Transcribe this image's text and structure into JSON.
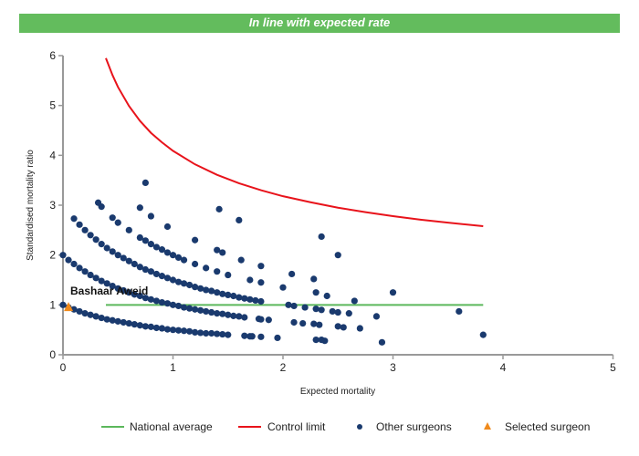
{
  "banner": {
    "text": "In line with expected rate",
    "color": "#63bc5d"
  },
  "chart_data": {
    "type": "scatter",
    "title": "",
    "xlabel": "Expected mortality",
    "ylabel": "Standardised mortality ratio",
    "xlim": [
      0,
      5
    ],
    "ylim": [
      0,
      6
    ],
    "xticks": [
      "0",
      "1",
      "2",
      "3",
      "4",
      "5"
    ],
    "yticks": [
      "0",
      "1",
      "2",
      "3",
      "4",
      "5",
      "6"
    ],
    "grid": false,
    "legend_position": "bottom",
    "legend": [
      "National average",
      "Control limit",
      "Other surgeons",
      "Selected surgeon"
    ],
    "national_average": {
      "name": "National average",
      "color": "#5cb85c",
      "y": 1,
      "x_range": [
        0.39,
        3.82
      ]
    },
    "control_limit": {
      "name": "Control limit",
      "color": "#e8131b",
      "points": [
        [
          0.39,
          5.95
        ],
        [
          0.45,
          5.61
        ],
        [
          0.5,
          5.37
        ],
        [
          0.6,
          4.99
        ],
        [
          0.7,
          4.69
        ],
        [
          0.8,
          4.45
        ],
        [
          0.9,
          4.26
        ],
        [
          1.0,
          4.09
        ],
        [
          1.2,
          3.82
        ],
        [
          1.4,
          3.61
        ],
        [
          1.6,
          3.44
        ],
        [
          1.8,
          3.3
        ],
        [
          2.0,
          3.18
        ],
        [
          2.25,
          3.06
        ],
        [
          2.5,
          2.95
        ],
        [
          2.75,
          2.86
        ],
        [
          3.0,
          2.78
        ],
        [
          3.25,
          2.71
        ],
        [
          3.5,
          2.65
        ],
        [
          3.82,
          2.58
        ]
      ]
    },
    "other_surgeons": {
      "name": "Other surgeons",
      "color": "#1a3a6e",
      "points": [
        [
          0,
          1.0
        ],
        [
          0.05,
          0.95
        ],
        [
          0.1,
          0.91
        ],
        [
          0.15,
          0.87
        ],
        [
          0.2,
          0.83
        ],
        [
          0.25,
          0.8
        ],
        [
          0.3,
          0.77
        ],
        [
          0.35,
          0.74
        ],
        [
          0.4,
          0.71
        ],
        [
          0.45,
          0.69
        ],
        [
          0.5,
          0.67
        ],
        [
          0.55,
          0.65
        ],
        [
          0.6,
          0.63
        ],
        [
          0.65,
          0.61
        ],
        [
          0.7,
          0.59
        ],
        [
          0.75,
          0.57
        ],
        [
          0.8,
          0.56
        ],
        [
          0.85,
          0.54
        ],
        [
          0.9,
          0.53
        ],
        [
          0.95,
          0.51
        ],
        [
          1.0,
          0.5
        ],
        [
          1.05,
          0.49
        ],
        [
          1.1,
          0.48
        ],
        [
          1.15,
          0.47
        ],
        [
          1.2,
          0.45
        ],
        [
          1.25,
          0.44
        ],
        [
          1.3,
          0.43
        ],
        [
          1.35,
          0.43
        ],
        [
          1.4,
          0.42
        ],
        [
          1.45,
          0.41
        ],
        [
          1.5,
          0.4
        ],
        [
          1.65,
          0.38
        ],
        [
          1.7,
          0.37
        ],
        [
          1.72,
          0.37
        ],
        [
          1.8,
          0.36
        ],
        [
          1.95,
          0.34
        ],
        [
          0,
          2.0
        ],
        [
          0.05,
          1.9
        ],
        [
          0.1,
          1.82
        ],
        [
          0.15,
          1.74
        ],
        [
          0.2,
          1.67
        ],
        [
          0.25,
          1.6
        ],
        [
          0.3,
          1.54
        ],
        [
          0.35,
          1.48
        ],
        [
          0.4,
          1.43
        ],
        [
          0.45,
          1.38
        ],
        [
          0.5,
          1.33
        ],
        [
          0.55,
          1.29
        ],
        [
          0.6,
          1.25
        ],
        [
          0.65,
          1.21
        ],
        [
          0.7,
          1.18
        ],
        [
          0.75,
          1.14
        ],
        [
          0.8,
          1.11
        ],
        [
          0.85,
          1.08
        ],
        [
          0.9,
          1.05
        ],
        [
          0.95,
          1.03
        ],
        [
          1.0,
          1.0
        ],
        [
          1.05,
          0.98
        ],
        [
          1.1,
          0.95
        ],
        [
          1.15,
          0.93
        ],
        [
          1.2,
          0.91
        ],
        [
          1.25,
          0.89
        ],
        [
          1.3,
          0.87
        ],
        [
          1.35,
          0.85
        ],
        [
          1.4,
          0.83
        ],
        [
          1.45,
          0.82
        ],
        [
          1.5,
          0.8
        ],
        [
          1.55,
          0.78
        ],
        [
          1.6,
          0.77
        ],
        [
          1.65,
          0.75
        ],
        [
          1.78,
          0.72
        ],
        [
          1.8,
          0.71
        ],
        [
          1.87,
          0.7
        ],
        [
          0.1,
          2.73
        ],
        [
          0.15,
          2.61
        ],
        [
          0.2,
          2.5
        ],
        [
          0.25,
          2.4
        ],
        [
          0.3,
          2.31
        ],
        [
          0.35,
          2.22
        ],
        [
          0.4,
          2.14
        ],
        [
          0.45,
          2.07
        ],
        [
          0.5,
          2.0
        ],
        [
          0.55,
          1.94
        ],
        [
          0.6,
          1.88
        ],
        [
          0.65,
          1.82
        ],
        [
          0.7,
          1.76
        ],
        [
          0.75,
          1.71
        ],
        [
          0.8,
          1.67
        ],
        [
          0.85,
          1.62
        ],
        [
          0.9,
          1.58
        ],
        [
          0.95,
          1.54
        ],
        [
          1.0,
          1.5
        ],
        [
          1.05,
          1.46
        ],
        [
          1.1,
          1.43
        ],
        [
          1.15,
          1.4
        ],
        [
          1.2,
          1.36
        ],
        [
          1.25,
          1.33
        ],
        [
          1.3,
          1.3
        ],
        [
          1.35,
          1.28
        ],
        [
          1.4,
          1.25
        ],
        [
          1.45,
          1.22
        ],
        [
          1.5,
          1.2
        ],
        [
          1.55,
          1.18
        ],
        [
          1.6,
          1.15
        ],
        [
          1.65,
          1.13
        ],
        [
          1.7,
          1.11
        ],
        [
          1.75,
          1.09
        ],
        [
          1.8,
          1.07
        ],
        [
          0.32,
          3.05
        ],
        [
          0.35,
          2.97
        ],
        [
          0.45,
          2.75
        ],
        [
          0.5,
          2.65
        ],
        [
          0.6,
          2.5
        ],
        [
          0.7,
          2.35
        ],
        [
          0.75,
          2.29
        ],
        [
          0.8,
          2.22
        ],
        [
          0.85,
          2.16
        ],
        [
          0.9,
          2.11
        ],
        [
          0.95,
          2.05
        ],
        [
          1.0,
          2.0
        ],
        [
          1.05,
          1.95
        ],
        [
          1.1,
          1.9
        ],
        [
          1.2,
          1.82
        ],
        [
          1.3,
          1.74
        ],
        [
          1.4,
          1.67
        ],
        [
          1.5,
          1.6
        ],
        [
          0.75,
          3.45
        ],
        [
          0.7,
          2.95
        ],
        [
          0.8,
          2.78
        ],
        [
          0.95,
          2.57
        ],
        [
          1.42,
          2.92
        ],
        [
          1.6,
          2.7
        ],
        [
          1.2,
          2.3
        ],
        [
          1.45,
          2.05
        ],
        [
          1.4,
          2.1
        ],
        [
          1.62,
          1.9
        ],
        [
          1.8,
          1.78
        ],
        [
          1.7,
          1.5
        ],
        [
          1.8,
          1.45
        ],
        [
          2.0,
          1.35
        ],
        [
          2.08,
          1.62
        ],
        [
          2.28,
          1.52
        ],
        [
          2.3,
          1.25
        ],
        [
          2.35,
          2.37
        ],
        [
          2.5,
          2.0
        ],
        [
          2.4,
          1.18
        ],
        [
          3.0,
          1.25
        ],
        [
          2.65,
          1.08
        ],
        [
          2.05,
          1.0
        ],
        [
          2.1,
          0.98
        ],
        [
          2.2,
          0.95
        ],
        [
          2.3,
          0.92
        ],
        [
          2.35,
          0.9
        ],
        [
          2.45,
          0.87
        ],
        [
          2.5,
          0.85
        ],
        [
          2.6,
          0.83
        ],
        [
          2.1,
          0.65
        ],
        [
          2.18,
          0.63
        ],
        [
          2.28,
          0.62
        ],
        [
          2.33,
          0.6
        ],
        [
          2.5,
          0.57
        ],
        [
          2.55,
          0.55
        ],
        [
          2.7,
          0.53
        ],
        [
          2.85,
          0.77
        ],
        [
          2.3,
          0.3
        ],
        [
          2.35,
          0.3
        ],
        [
          2.38,
          0.28
        ],
        [
          2.9,
          0.25
        ],
        [
          3.6,
          0.87
        ],
        [
          3.82,
          0.4
        ]
      ]
    },
    "selected_surgeon": {
      "name": "Selected surgeon",
      "label": "Bashaar Aweid",
      "color": "#f08a1c",
      "x": 0.05,
      "y": 0.95
    }
  }
}
